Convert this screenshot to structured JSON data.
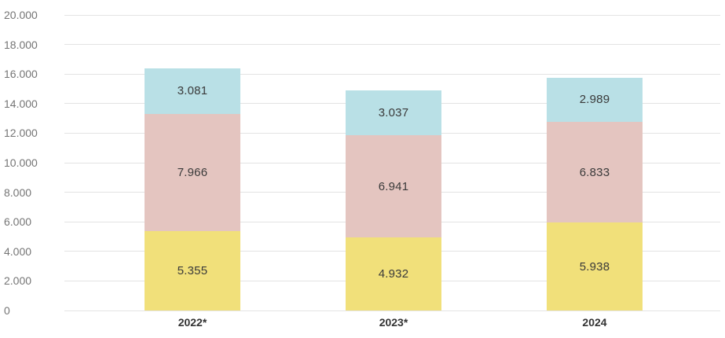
{
  "chart_data": {
    "type": "bar",
    "stacked": true,
    "categories": [
      "2022*",
      "2023*",
      "2024"
    ],
    "series": [
      {
        "id": "bottom-yellow",
        "color": "#f1e07a",
        "values": [
          5355,
          4932,
          5938
        ],
        "value_labels": [
          "5.355",
          "4.932",
          "5.938"
        ]
      },
      {
        "id": "middle-rose",
        "color": "#e4c5c0",
        "values": [
          7966,
          6941,
          6833
        ],
        "value_labels": [
          "7.966",
          "6.941",
          "6.833"
        ]
      },
      {
        "id": "top-blue",
        "color": "#b9e0e6",
        "values": [
          3081,
          3037,
          2989
        ],
        "value_labels": [
          "3.081",
          "3.037",
          "2.989"
        ]
      }
    ],
    "ylim": [
      0,
      20000
    ],
    "ytick_step": 2000,
    "yticks": [
      {
        "value": 0,
        "label": "0"
      },
      {
        "value": 2000,
        "label": "2.000"
      },
      {
        "value": 4000,
        "label": "4.000"
      },
      {
        "value": 6000,
        "label": "6.000"
      },
      {
        "value": 8000,
        "label": "8.000"
      },
      {
        "value": 10000,
        "label": "10.000"
      },
      {
        "value": 12000,
        "label": "12.000"
      },
      {
        "value": 14000,
        "label": "14.000"
      },
      {
        "value": 16000,
        "label": "16.000"
      },
      {
        "value": 18000,
        "label": "18.000"
      },
      {
        "value": 20000,
        "label": "20.000"
      }
    ],
    "grid": true,
    "legend": "none"
  }
}
